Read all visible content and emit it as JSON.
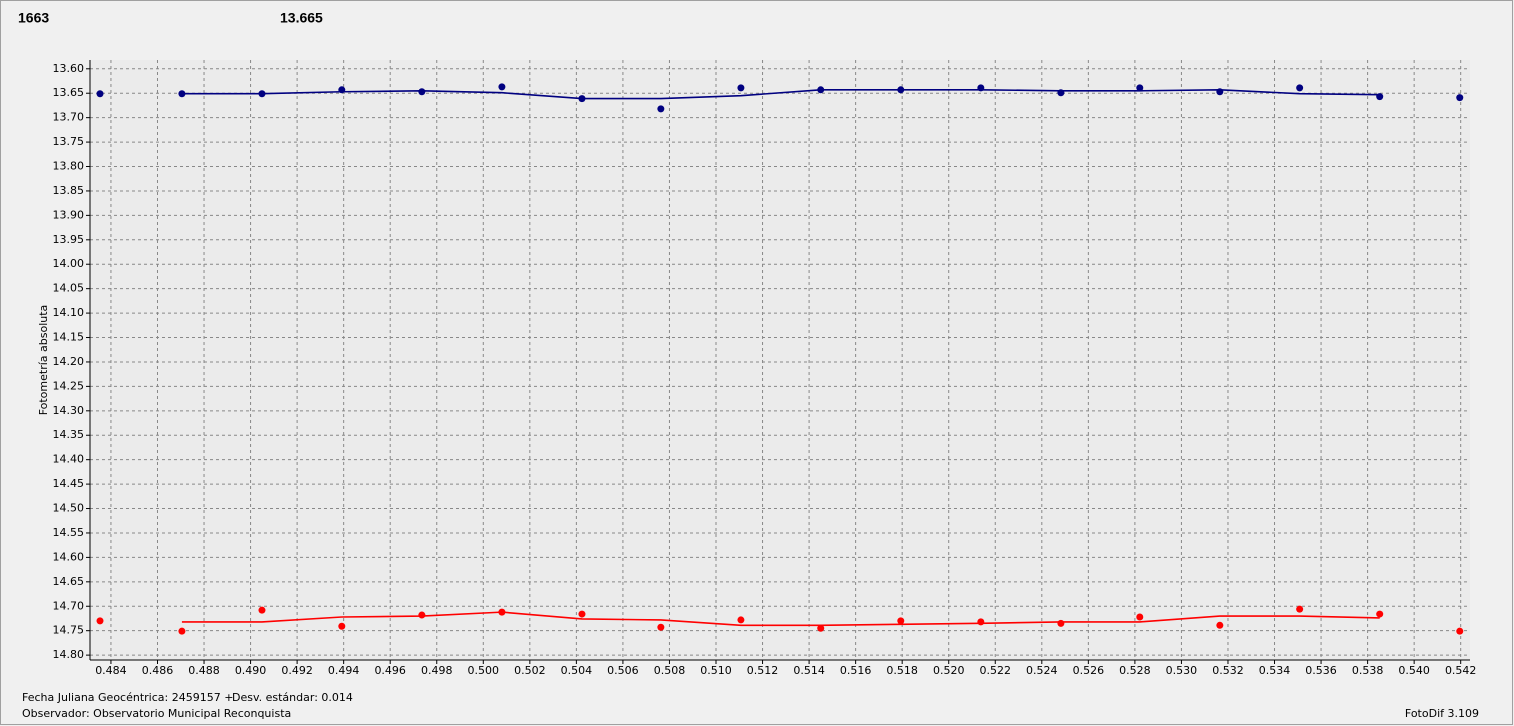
{
  "chart_data": {
    "type": "scatter-line",
    "readouts": [
      {
        "text": "1663",
        "color": "#ff0000"
      },
      {
        "text": "13.665",
        "color": "#000080"
      }
    ],
    "y_label": "Fotometría absoluta",
    "footer": [
      "Fecha Juliana Geocéntrica: 2459157 +",
      "Desv. estándar: 0.014",
      "Observador: Observatorio Municipal Reconquista",
      "FotoDif 3.109"
    ],
    "x": [
      0.48353,
      0.48705,
      0.49049,
      0.49392,
      0.49736,
      0.5008,
      0.50424,
      0.50763,
      0.51107,
      0.5145,
      0.51794,
      0.52138,
      0.52482,
      0.52821,
      0.53165,
      0.53508,
      0.53852,
      0.54196
    ],
    "series": [
      {
        "color": "#000080",
        "style": "markers",
        "values": [
          13.651,
          13.651,
          13.651,
          13.643,
          13.647,
          13.637,
          13.661,
          13.682,
          13.639,
          13.643,
          13.643,
          13.639,
          13.649,
          13.639,
          13.647,
          13.639,
          13.657,
          13.659
        ]
      },
      {
        "color": "#000080",
        "style": "line",
        "values": [
          null,
          13.651,
          13.651,
          13.647,
          13.645,
          13.649,
          13.661,
          13.661,
          13.655,
          13.643,
          13.643,
          13.643,
          13.645,
          13.645,
          13.643,
          13.651,
          13.653,
          null
        ]
      },
      {
        "color": "#ff0000",
        "style": "markers",
        "values": [
          14.73,
          14.751,
          14.708,
          14.741,
          14.718,
          14.712,
          14.716,
          14.743,
          14.728,
          14.745,
          14.73,
          14.732,
          14.735,
          14.722,
          14.739,
          14.706,
          14.716,
          14.751
        ]
      },
      {
        "color": "#ff0000",
        "style": "line",
        "values": [
          null,
          14.732,
          14.732,
          14.722,
          14.72,
          14.712,
          14.726,
          14.728,
          14.739,
          14.739,
          14.737,
          14.735,
          14.732,
          14.732,
          14.72,
          14.72,
          14.724,
          null
        ]
      }
    ],
    "xlim": [
      0.4831,
      0.5424
    ],
    "ylim": [
      13.582,
      14.81
    ],
    "y_inverted": true,
    "grid": true,
    "xticks": [
      0.484,
      0.486,
      0.488,
      {
        "value": 0.49,
        "label": "0.490"
      },
      0.492,
      0.494,
      0.496,
      0.498,
      {
        "value": 0.5,
        "label": "0.500"
      },
      0.502,
      0.504,
      0.506,
      0.508,
      {
        "value": 0.51,
        "label": "0.510"
      },
      0.512,
      0.514,
      0.516,
      0.518,
      {
        "value": 0.52,
        "label": "0.520"
      },
      0.522,
      0.524,
      0.526,
      0.528,
      {
        "value": 0.53,
        "label": "0.530"
      },
      0.532,
      0.534,
      0.536,
      0.538,
      {
        "value": 0.54,
        "label": "0.540"
      },
      0.542
    ],
    "yticks": [
      {
        "value": 13.6,
        "label": "13.60"
      },
      13.65,
      {
        "value": 13.7,
        "label": "13.70"
      },
      13.75,
      {
        "value": 13.8,
        "label": "13.80"
      },
      13.85,
      {
        "value": 13.9,
        "label": "13.90"
      },
      13.95,
      {
        "value": 14,
        "label": "14.00"
      },
      14.05,
      {
        "value": 14.1,
        "label": "14.10"
      },
      14.15,
      {
        "value": 14.2,
        "label": "14.20"
      },
      14.25,
      {
        "value": 14.3,
        "label": "14.30"
      },
      14.35,
      {
        "value": 14.4,
        "label": "14.40"
      },
      14.45,
      {
        "value": 14.5,
        "label": "14.50"
      },
      14.55,
      {
        "value": 14.6,
        "label": "14.60"
      },
      14.65,
      {
        "value": 14.7,
        "label": "14.70"
      },
      14.75,
      {
        "value": 14.8,
        "label": "14.80"
      }
    ]
  }
}
